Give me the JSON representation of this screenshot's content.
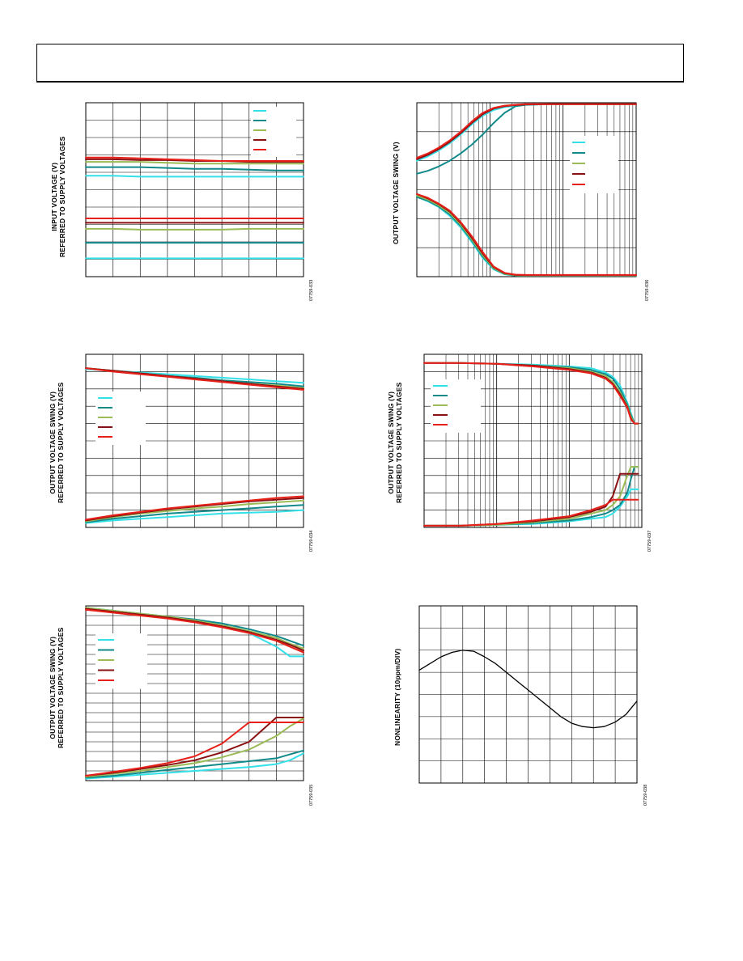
{
  "page": {
    "header_text": ""
  },
  "charts": [
    {
      "id": "fig-input-voltage",
      "figure_code": "07759-033",
      "ylabel_lines": [
        "INPUT VOLTAGE (V)",
        "REFERRED TO SUPPLY VOLTAGES"
      ],
      "colors": [
        "#33e0e8",
        "#138a8a",
        "#9abb55",
        "#8a1111",
        "#e8201a"
      ]
    },
    {
      "id": "fig-swing-vs-load-resistance",
      "figure_code": "07759-036",
      "ylabel_lines": [
        "OUTPUT VOLTAGE SWING (V)"
      ],
      "colors": [
        "#33e0e8",
        "#138a8a",
        "#9abb55",
        "#8a1111",
        "#e8201a"
      ]
    },
    {
      "id": "fig-swing-vs-temperature",
      "figure_code": "07759-034",
      "ylabel_lines": [
        "OUTPUT VOLTAGE SWING (V)",
        "REFERRED TO SUPPLY VOLTAGES"
      ],
      "colors": [
        "#33e0e8",
        "#138a8a",
        "#9abb55",
        "#8a1111",
        "#e8201a"
      ]
    },
    {
      "id": "fig-swing-vs-output-current-log",
      "figure_code": "07759-037",
      "ylabel_lines": [
        "OUTPUT VOLTAGE SWING (V)",
        "REFERRED TO SUPPLY VOLTAGES"
      ],
      "colors": [
        "#33e0e8",
        "#138a8a",
        "#9abb55",
        "#8a1111",
        "#e8201a"
      ]
    },
    {
      "id": "fig-swing-vs-output-current",
      "figure_code": "07759-035",
      "ylabel_lines": [
        "OUTPUT VOLTAGE SWING (V)",
        "REFERRED TO SUPPLY VOLTAGES"
      ],
      "colors": [
        "#33e0e8",
        "#138a8a",
        "#9abb55",
        "#8a1111",
        "#e8201a"
      ]
    },
    {
      "id": "fig-nonlinearity",
      "figure_code": "07759-038",
      "ylabel_lines": [
        "NONLINEARITY (10ppm/DIV)"
      ],
      "colors": [
        "#000000"
      ]
    }
  ],
  "chart_data": [
    {
      "type": "line",
      "title": "",
      "xlabel": "",
      "ylabel": "INPUT VOLTAGE (V) REFERRED TO SUPPLY VOLTAGES",
      "grid": true,
      "legend": "top-right",
      "xlim": [
        0,
        8
      ],
      "ylim": [
        0,
        10
      ],
      "x": [
        0,
        1,
        2,
        3,
        4,
        5,
        6,
        7,
        8
      ],
      "series": [
        {
          "values": [
            5.8,
            5.8,
            5.75,
            5.75,
            5.75,
            5.75,
            5.75,
            5.75,
            5.75
          ]
        },
        {
          "values": [
            6.3,
            6.3,
            6.3,
            6.25,
            6.2,
            6.2,
            6.15,
            6.1,
            6.1
          ]
        },
        {
          "values": [
            6.6,
            6.6,
            6.6,
            6.55,
            6.5,
            6.5,
            6.5,
            6.5,
            6.5
          ]
        },
        {
          "values": [
            6.75,
            6.75,
            6.7,
            6.7,
            6.65,
            6.65,
            6.6,
            6.6,
            6.6
          ]
        },
        {
          "values": [
            6.85,
            6.85,
            6.8,
            6.75,
            6.7,
            6.65,
            6.65,
            6.65,
            6.65
          ]
        },
        {
          "values": [
            1.05,
            1.05,
            1.05,
            1.05,
            1.05,
            1.05,
            1.05,
            1.05,
            1.05
          ]
        },
        {
          "values": [
            1.95,
            1.95,
            1.95,
            1.95,
            1.95,
            1.95,
            1.95,
            1.95,
            1.95
          ]
        },
        {
          "values": [
            2.75,
            2.75,
            2.7,
            2.7,
            2.7,
            2.7,
            2.75,
            2.75,
            2.75
          ]
        },
        {
          "values": [
            3.1,
            3.1,
            3.1,
            3.1,
            3.1,
            3.1,
            3.1,
            3.1,
            3.1
          ]
        },
        {
          "values": [
            3.35,
            3.35,
            3.35,
            3.35,
            3.35,
            3.35,
            3.35,
            3.35,
            3.35
          ]
        }
      ]
    },
    {
      "type": "line",
      "title": "",
      "xlabel": "",
      "ylabel": "OUTPUT VOLTAGE SWING (V)",
      "grid": true,
      "log_x": true,
      "legend": "right",
      "xlim": [
        0,
        3
      ],
      "ylim": [
        0,
        6
      ],
      "x": [
        0,
        0.15,
        0.3,
        0.45,
        0.6,
        0.75,
        0.9,
        1.05,
        1.2,
        1.35,
        1.5,
        1.8,
        2.1,
        2.4,
        2.7,
        3.0
      ],
      "series": [
        {
          "values": [
            4,
            4.15,
            4.35,
            4.6,
            4.9,
            5.25,
            5.55,
            5.75,
            5.85,
            5.9,
            5.93,
            5.95,
            5.95,
            5.95,
            5.95,
            5.95
          ]
        },
        {
          "values": [
            3.55,
            3.65,
            3.8,
            4.0,
            4.25,
            4.55,
            4.9,
            5.3,
            5.65,
            5.88,
            5.93,
            5.95,
            5.95,
            5.95,
            5.95,
            5.95
          ]
        },
        {
          "values": [
            3.75,
            3.85,
            3.95,
            4.0,
            4.0,
            4.05,
            4.1,
            4.15,
            4.2,
            4.25,
            4.3,
            4.35,
            4.4,
            4.45,
            4.5,
            4.55
          ]
        },
        {
          "values": [
            4.05,
            4.2,
            4.4,
            4.65,
            4.95,
            5.3,
            5.6,
            5.8,
            5.88,
            5.92,
            5.94,
            5.95,
            5.95,
            5.95,
            5.95,
            5.95
          ]
        },
        {
          "values": [
            4.1,
            4.25,
            4.45,
            4.7,
            5.0,
            5.35,
            5.65,
            5.82,
            5.9,
            5.93,
            5.95,
            5.95,
            5.95,
            5.95,
            5.95,
            5.95
          ]
        },
        {
          "values": [
            2.75,
            2.6,
            2.4,
            2.1,
            1.7,
            1.2,
            0.65,
            0.25,
            0.08,
            0.04,
            0.03,
            0.03,
            0.03,
            0.03,
            0.03,
            0.03
          ]
        },
        {
          "values": [
            2.75,
            2.62,
            2.42,
            2.15,
            1.75,
            1.25,
            0.7,
            0.28,
            0.09,
            0.04,
            0.03,
            0.03,
            0.03,
            0.03,
            0.03,
            0.03
          ]
        },
        {
          "values": [
            2.8,
            2.66,
            2.46,
            2.2,
            1.8,
            1.3,
            0.75,
            0.3,
            0.1,
            0.05,
            0.04,
            0.04,
            0.04,
            0.04,
            0.04,
            0.04
          ]
        },
        {
          "values": [
            2.85,
            2.7,
            2.5,
            2.25,
            1.85,
            1.35,
            0.8,
            0.33,
            0.12,
            0.06,
            0.05,
            0.05,
            0.05,
            0.05,
            0.05,
            0.05
          ]
        },
        {
          "values": [
            2.85,
            2.72,
            2.52,
            2.28,
            1.88,
            1.4,
            0.85,
            0.35,
            0.13,
            0.07,
            0.06,
            0.06,
            0.06,
            0.06,
            0.06,
            0.06
          ]
        }
      ]
    },
    {
      "type": "line",
      "title": "",
      "xlabel": "",
      "ylabel": "OUTPUT VOLTAGE SWING (V) REFERRED TO SUPPLY VOLTAGES",
      "grid": true,
      "legend": "left",
      "xlim": [
        0,
        8
      ],
      "ylim": [
        0,
        10
      ],
      "x": [
        0,
        1,
        2,
        3,
        4,
        5,
        6,
        7,
        8
      ],
      "series": [
        {
          "values": [
            9.15,
            9.05,
            8.95,
            8.85,
            8.75,
            8.65,
            8.55,
            8.45,
            8.35
          ]
        },
        {
          "values": [
            9.2,
            9.05,
            8.9,
            8.75,
            8.65,
            8.5,
            8.4,
            8.3,
            8.15
          ]
        },
        {
          "values": [
            9.2,
            9.05,
            8.9,
            8.75,
            8.6,
            8.45,
            8.3,
            8.2,
            8.05
          ]
        },
        {
          "values": [
            9.2,
            9.05,
            8.9,
            8.75,
            8.6,
            8.45,
            8.3,
            8.15,
            8.0
          ]
        },
        {
          "values": [
            9.2,
            9.0,
            8.85,
            8.7,
            8.55,
            8.4,
            8.25,
            8.1,
            7.95
          ]
        },
        {
          "values": [
            0.25,
            0.4,
            0.5,
            0.6,
            0.7,
            0.8,
            0.85,
            0.9,
            1.0
          ]
        },
        {
          "values": [
            0.3,
            0.5,
            0.65,
            0.8,
            0.9,
            1.0,
            1.1,
            1.2,
            1.3
          ]
        },
        {
          "values": [
            0.35,
            0.6,
            0.8,
            0.95,
            1.1,
            1.2,
            1.35,
            1.45,
            1.55
          ]
        },
        {
          "values": [
            0.4,
            0.65,
            0.85,
            1.05,
            1.2,
            1.35,
            1.5,
            1.6,
            1.7
          ]
        },
        {
          "values": [
            0.45,
            0.7,
            0.9,
            1.1,
            1.25,
            1.4,
            1.55,
            1.7,
            1.8
          ]
        }
      ]
    },
    {
      "type": "line",
      "title": "",
      "xlabel": "",
      "ylabel": "OUTPUT VOLTAGE SWING (V) REFERRED TO SUPPLY VOLTAGES",
      "grid": true,
      "log_x": true,
      "legend": "left",
      "xlim": [
        0,
        3
      ],
      "ylim": [
        0,
        10
      ],
      "x": [
        0,
        0.5,
        1.0,
        1.5,
        2.0,
        2.3,
        2.5,
        2.6,
        2.7,
        2.8,
        2.85,
        2.9,
        2.95
      ],
      "series": [
        {
          "values": [
            9.5,
            9.5,
            9.45,
            9.4,
            9.3,
            9.2,
            8.95,
            8.7,
            8.2,
            7.2,
            6.6,
            6.0,
            6.0
          ]
        },
        {
          "values": [
            9.5,
            9.5,
            9.45,
            9.35,
            9.25,
            9.1,
            8.85,
            8.6,
            8.0,
            7.1,
            6.5,
            6.0,
            6.0
          ]
        },
        {
          "values": [
            9.5,
            9.5,
            9.45,
            9.35,
            9.2,
            9.0,
            8.75,
            8.4,
            7.8,
            7.0,
            6.4,
            6.0,
            6.0
          ]
        },
        {
          "values": [
            9.5,
            9.5,
            9.45,
            9.35,
            9.15,
            8.95,
            8.65,
            8.3,
            7.7,
            6.95,
            6.3,
            6.0,
            6.0
          ]
        },
        {
          "values": [
            9.5,
            9.5,
            9.45,
            9.3,
            9.1,
            8.9,
            8.6,
            8.25,
            7.6,
            6.9,
            6.25,
            6.0,
            6.0
          ]
        },
        {
          "values": [
            0.1,
            0.1,
            0.15,
            0.2,
            0.35,
            0.5,
            0.6,
            0.8,
            1.2,
            1.8,
            2.2,
            2.2,
            2.2
          ]
        },
        {
          "values": [
            0.1,
            0.1,
            0.15,
            0.25,
            0.4,
            0.6,
            0.8,
            1.0,
            1.3,
            2.0,
            2.8,
            3.5,
            3.5
          ]
        },
        {
          "values": [
            0.1,
            0.1,
            0.15,
            0.3,
            0.5,
            0.8,
            1.0,
            1.3,
            1.8,
            3.0,
            3.5,
            3.5,
            3.5
          ]
        },
        {
          "values": [
            0.1,
            0.1,
            0.2,
            0.35,
            0.6,
            0.9,
            1.2,
            1.8,
            3.1,
            3.1,
            3.1,
            3.1,
            3.1
          ]
        },
        {
          "values": [
            0.1,
            0.1,
            0.2,
            0.4,
            0.65,
            1.0,
            1.3,
            1.6,
            1.6,
            1.6,
            1.6,
            1.6,
            1.6
          ]
        }
      ]
    },
    {
      "type": "line",
      "title": "",
      "xlabel": "",
      "ylabel": "OUTPUT VOLTAGE SWING (V) REFERRED TO SUPPLY VOLTAGES",
      "grid": true,
      "legend": "left",
      "xlim": [
        0,
        8
      ],
      "ylim": [
        0,
        18
      ],
      "x": [
        0,
        1,
        2,
        3,
        4,
        5,
        6,
        7,
        7.5,
        8
      ],
      "series": [
        {
          "values": [
            17.8,
            17.5,
            17.2,
            16.9,
            16.5,
            16.0,
            15.2,
            13.8,
            12.8,
            12.8
          ]
        },
        {
          "values": [
            17.8,
            17.5,
            17.2,
            16.9,
            16.6,
            16.2,
            15.6,
            14.9,
            14.4,
            13.9
          ]
        },
        {
          "values": [
            17.8,
            17.5,
            17.2,
            16.9,
            16.5,
            16.0,
            15.4,
            14.7,
            14.1,
            13.6
          ]
        },
        {
          "values": [
            17.7,
            17.4,
            17.1,
            16.8,
            16.4,
            15.9,
            15.3,
            14.5,
            14.0,
            13.4
          ]
        },
        {
          "values": [
            17.6,
            17.3,
            17.0,
            16.7,
            16.3,
            15.8,
            15.2,
            14.4,
            13.8,
            13.2
          ]
        },
        {
          "values": [
            0.2,
            0.4,
            0.6,
            0.8,
            1.0,
            1.2,
            1.4,
            1.7,
            2.1,
            2.8
          ]
        },
        {
          "values": [
            0.3,
            0.5,
            0.8,
            1.1,
            1.4,
            1.7,
            2.0,
            2.3,
            2.7,
            3.1
          ]
        },
        {
          "values": [
            0.4,
            0.7,
            1.0,
            1.4,
            1.8,
            2.4,
            3.2,
            4.6,
            5.6,
            6.4
          ]
        },
        {
          "values": [
            0.5,
            0.8,
            1.2,
            1.6,
            2.1,
            2.9,
            4.0,
            6.5,
            6.5,
            6.5
          ]
        },
        {
          "values": [
            0.5,
            0.9,
            1.3,
            1.8,
            2.5,
            3.8,
            6.0,
            6.0,
            6.0,
            6.0
          ]
        }
      ]
    },
    {
      "type": "line",
      "title": "",
      "xlabel": "",
      "ylabel": "NONLINEARITY (10ppm/DIV)",
      "grid": true,
      "xlim": [
        0,
        10
      ],
      "ylim": [
        -40,
        40
      ],
      "x": [
        0,
        0.5,
        1,
        1.5,
        2,
        2.5,
        3,
        3.5,
        4,
        4.5,
        5,
        5.5,
        6,
        6.5,
        7,
        7.5,
        8,
        8.5,
        9,
        9.5,
        10
      ],
      "series": [
        {
          "values": [
            11,
            14,
            17,
            19,
            20,
            19.5,
            17,
            14,
            10,
            6,
            2,
            -2,
            -6,
            -10,
            -13,
            -14.5,
            -15,
            -14.5,
            -12.5,
            -9,
            -3
          ]
        }
      ]
    }
  ]
}
